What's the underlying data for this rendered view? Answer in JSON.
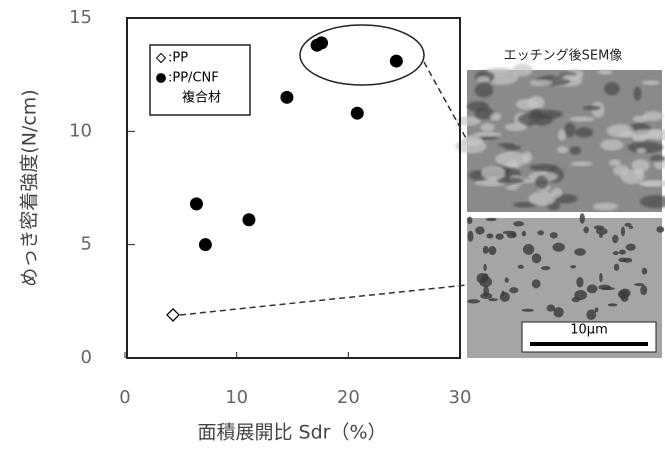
{
  "chart_data": {
    "type": "scatter",
    "xlabel": "面積展開比 Sdr（%）",
    "ylabel": "めっき密着強度(N/cm)",
    "xlim": [
      0,
      30
    ],
    "xticks": [
      0,
      10,
      20,
      30
    ],
    "ylim": [
      0,
      15
    ],
    "yticks": [
      0,
      5,
      10,
      15
    ],
    "series": [
      {
        "name": ":PP",
        "marker": "diamond-open",
        "color": "#000000",
        "x": [
          4.3
        ],
        "values": [
          1.9
        ]
      },
      {
        "name": ":PP/CNF",
        "note": "複合材",
        "marker": "circle-filled",
        "color": "#000000",
        "x": [
          6.4,
          7.2,
          11.1,
          14.5,
          17.2,
          17.6,
          20.8,
          24.3
        ],
        "values": [
          6.8,
          5.0,
          6.1,
          11.5,
          13.8,
          13.9,
          10.8,
          13.1
        ]
      }
    ],
    "annotations": [
      "エッチング後SEM像",
      "10μm"
    ]
  }
}
